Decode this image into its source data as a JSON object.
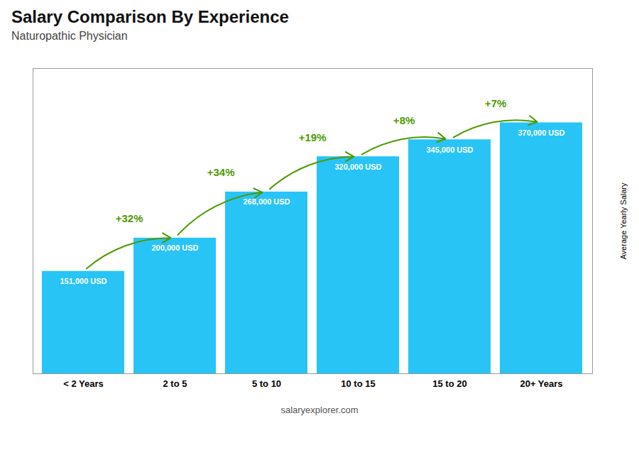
{
  "chart_data": {
    "type": "bar",
    "title": "Salary Comparison By Experience",
    "subtitle": "Naturopathic Physician",
    "categories": [
      "< 2 Years",
      "2 to 5",
      "5 to 10",
      "10 to 15",
      "15 to 20",
      "20+ Years"
    ],
    "values": [
      151000,
      200000,
      268000,
      320000,
      345000,
      370000
    ],
    "value_labels": [
      "151,000 USD",
      "200,000 USD",
      "268,000 USD",
      "320,000 USD",
      "345,000 USD",
      "370,000 USD"
    ],
    "data_labels": true,
    "color": "#29c4f6",
    "ylabel": "Average Yearly Salary",
    "ylim": [
      0,
      450000
    ],
    "tick_labels": "x",
    "grid": false,
    "annotations": [
      {
        "text": "+32%",
        "from": "< 2 Years",
        "to": "2 to 5"
      },
      {
        "text": "+34%",
        "from": "2 to 5",
        "to": "5 to 10"
      },
      {
        "text": "+19%",
        "from": "5 to 10",
        "to": "10 to 15"
      },
      {
        "text": "+8%",
        "from": "10 to 15",
        "to": "15 to 20"
      },
      {
        "text": "+7%",
        "from": "15 to 20",
        "to": "20+ Years"
      }
    ],
    "caption": "salaryexplorer.com"
  }
}
